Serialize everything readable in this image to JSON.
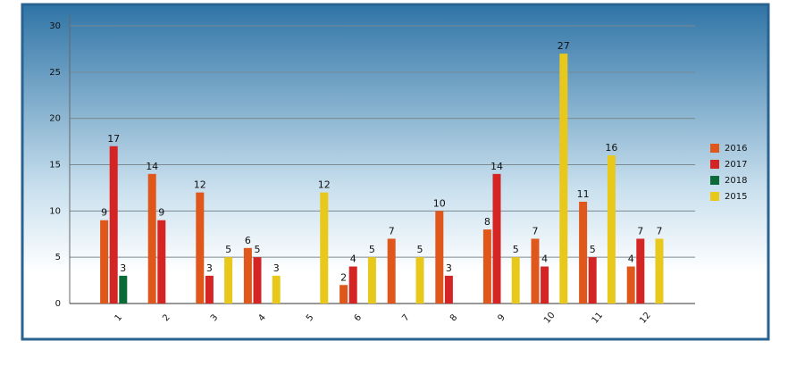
{
  "chart_data": {
    "type": "bar",
    "categories": [
      "1",
      "2",
      "3",
      "4",
      "5",
      "6",
      "7",
      "8",
      "9",
      "10",
      "11",
      "12"
    ],
    "series": [
      {
        "name": "2016",
        "color": "#e0571c",
        "values": [
          9,
          14,
          12,
          6,
          null,
          2,
          7,
          10,
          8,
          7,
          11,
          4
        ]
      },
      {
        "name": "2017",
        "color": "#d42424",
        "values": [
          17,
          9,
          3,
          5,
          null,
          4,
          null,
          3,
          14,
          4,
          5,
          7
        ]
      },
      {
        "name": "2018",
        "color": "#0b6b38",
        "values": [
          3,
          null,
          null,
          null,
          null,
          null,
          null,
          null,
          null,
          null,
          null,
          null
        ]
      },
      {
        "name": "2015",
        "color": "#e8c81a",
        "values": [
          null,
          null,
          5,
          3,
          12,
          5,
          5,
          null,
          5,
          27,
          16,
          7
        ]
      }
    ],
    "ylim": [
      0,
      30
    ],
    "yticks": [
      0,
      5,
      10,
      15,
      20,
      25,
      30
    ],
    "grid": true,
    "legend": "right"
  }
}
